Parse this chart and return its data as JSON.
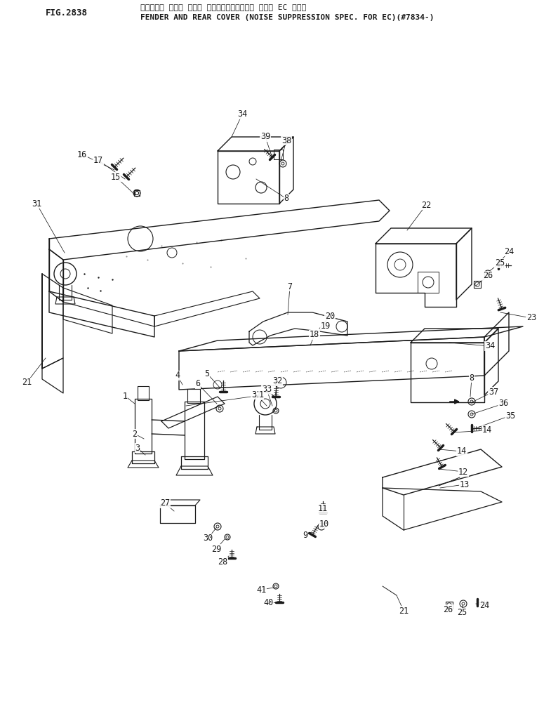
{
  "title_jp": "フェンダ・ および リヤー カバー（テイソウオン ショウ EC ムケ）",
  "title_en": "FENDER AND REAR COVER (NOISE SUPPRESSION SPEC. FOR EC)(#7834-)",
  "fig_num": "FIG.2838",
  "bg_color": "#ffffff",
  "line_color": "#1a1a1a",
  "label_fs": 8.5,
  "title_fs": 8.0,
  "header_fs": 9.0
}
